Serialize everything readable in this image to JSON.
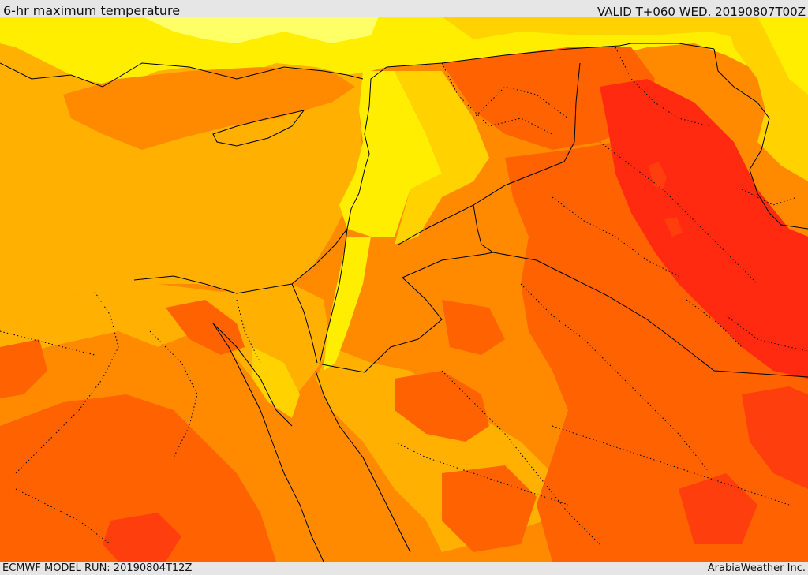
{
  "header": {
    "title": "6-hr maximum temperature",
    "valid_time": "VALID T+060 WED. 20190807T00Z"
  },
  "footer": {
    "model_run": "ECMWF MODEL RUN: 20190804T12Z",
    "credit": "ArabiaWeather Inc."
  },
  "map": {
    "palette": {
      "pale_yellow": "#ffff66",
      "yellow": "#ffee00",
      "light_orange": "#ffd200",
      "amber": "#ffb000",
      "orange": "#ff8a00",
      "dark_orange": "#ff6200",
      "red_orange": "#ff3e0e",
      "red": "#ff2a10",
      "border_color": "#000000"
    }
  }
}
